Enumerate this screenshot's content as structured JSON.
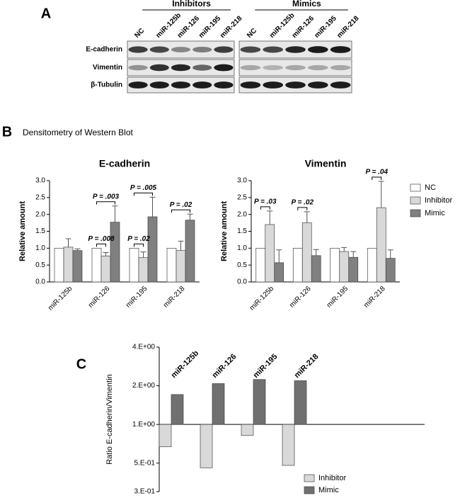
{
  "panel_labels": [
    "A",
    "B",
    "C"
  ],
  "panel_b_title": "Densitometry of Western Blot",
  "blot": {
    "groups": [
      {
        "label": "Inhibitors",
        "lanes": [
          "NC",
          "miR-125b",
          "miR-126",
          "miR-195",
          "miR-218"
        ]
      },
      {
        "label": "Mimics",
        "lanes": [
          "NC",
          "miR-125b",
          "miR-126",
          "miR-195",
          "miR-218"
        ]
      }
    ],
    "rows": [
      "E-cadherin",
      "Vimentin",
      "β-Tubulin"
    ]
  },
  "chart_data": [
    {
      "type": "bar",
      "title": "E-cadherin",
      "ylabel": "Relative amount",
      "categories": [
        "miR-125b",
        "miR-126",
        "miR-195",
        "miR-218"
      ],
      "series": [
        {
          "color": "#ffffff",
          "values": [
            1,
            1,
            1,
            1
          ],
          "errors": [
            0,
            0,
            0,
            0
          ]
        },
        {
          "color": "#d9d9d9",
          "values": [
            1.03,
            0.77,
            0.72,
            0.93
          ],
          "errors": [
            0.25,
            0.1,
            0.17,
            0.28
          ]
        },
        {
          "color": "#808080",
          "values": [
            0.93,
            1.77,
            1.93,
            1.83
          ],
          "errors": [
            0.05,
            0.48,
            0.58,
            0.18
          ]
        }
      ],
      "ylim": [
        0,
        3
      ],
      "yticks": [
        {
          "value": 0,
          "label": "0.0"
        },
        0.5,
        {
          "value": 1,
          "label": "1.0"
        },
        1.5,
        {
          "value": 2,
          "label": "2.0"
        },
        2.5,
        {
          "value": 3,
          "label": "3.0"
        }
      ],
      "annotations": [
        {
          "text": "P = .008",
          "category": 1,
          "series": [
            0,
            1
          ]
        },
        {
          "text": "P = .003",
          "category": 1,
          "series": [
            0,
            2
          ]
        },
        {
          "text": "P = .02",
          "category": 2,
          "series": [
            0,
            1
          ]
        },
        {
          "text": "P = .005",
          "category": 2,
          "series": [
            0,
            2
          ]
        },
        {
          "text": "P = .02",
          "category": 3,
          "series": [
            0,
            2
          ]
        }
      ]
    },
    {
      "type": "bar",
      "title": "Vimentin",
      "ylabel": "Relative amount",
      "categories": [
        "miR-125b",
        "miR-126",
        "miR-195",
        "miR-218"
      ],
      "series": [
        {
          "name": "NC",
          "color": "#ffffff",
          "values": [
            1,
            1,
            1,
            1
          ],
          "errors": [
            0,
            0,
            0,
            0
          ]
        },
        {
          "name": "Inhibitor",
          "color": "#d9d9d9",
          "values": [
            1.7,
            1.75,
            0.9,
            2.2
          ],
          "errors": [
            0.4,
            0.33,
            0.12,
            0.78
          ]
        },
        {
          "name": "Mimic",
          "color": "#808080",
          "values": [
            0.57,
            0.78,
            0.73,
            0.7
          ],
          "errors": [
            0.38,
            0.18,
            0.17,
            0.25
          ]
        }
      ],
      "ylim": [
        0,
        3
      ],
      "yticks": [
        {
          "value": 0,
          "label": "0.0"
        },
        0.5,
        {
          "value": 1,
          "label": "1.0"
        },
        1.5,
        {
          "value": 2,
          "label": "2.0"
        },
        2.5,
        {
          "value": 3,
          "label": "3.0"
        }
      ],
      "legend": "right",
      "annotations": [
        {
          "text": "P = .03",
          "category": 0,
          "series": [
            0,
            1
          ]
        },
        {
          "text": "P = .02",
          "category": 1,
          "series": [
            0,
            1
          ]
        },
        {
          "text": "P = .04",
          "category": 3,
          "series": [
            0,
            1
          ]
        }
      ]
    },
    {
      "type": "bar",
      "ylabel": "Ratio E-cadherin/Vimentin",
      "log_scale": true,
      "categories": [
        "miR-125b",
        "miR-126",
        "miR-195",
        "miR-218"
      ],
      "series": [
        {
          "name": "Inhibitor",
          "color": "#d9d9d9",
          "values": [
            0.67,
            0.46,
            0.82,
            0.48
          ]
        },
        {
          "name": "Mimic",
          "color": "#707070",
          "values": [
            1.71,
            2.08,
            2.24,
            2.19
          ]
        }
      ],
      "ylim": [
        0.3,
        4
      ],
      "yticks": [
        {
          "value": 0.3,
          "label": "3.E-01"
        },
        {
          "value": 0.5,
          "label": "5.E-01"
        },
        {
          "value": 1,
          "label": "1.E+00"
        },
        {
          "value": 2,
          "label": "2.E+00"
        },
        {
          "value": 4,
          "label": "4.E+00"
        }
      ],
      "legend": "bottom right"
    }
  ]
}
